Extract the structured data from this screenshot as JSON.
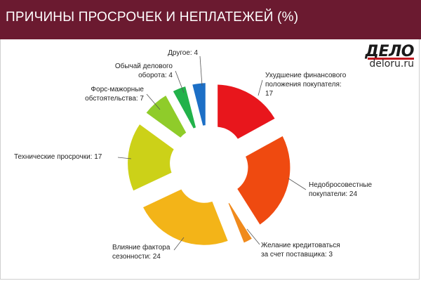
{
  "header": {
    "title": "ПРИЧИНЫ ПРОСРОЧЕК И НЕПЛАТЕЖЕЙ (%)"
  },
  "logo": {
    "word": "ДЕЛО",
    "site": "deloru.ru"
  },
  "chart_data": {
    "type": "pie",
    "title": "ПРИЧИНЫ ПРОСРОЧЕК И НЕПЛАТЕЖЕЙ (%)",
    "categories": [
      "Ухудшение финансового положения покупателя",
      "Недобросовестные покупатели",
      "Желание кредитоваться за счет поставщика",
      "Влияние фактора сезонности",
      "Технические просрочки",
      "Форс-мажорные обстоятельства",
      "Обычай делового оборота",
      "Другое"
    ],
    "values": [
      17,
      24,
      3,
      24,
      17,
      7,
      4,
      4
    ],
    "colors": [
      "#e8161c",
      "#ef4a10",
      "#f08a1c",
      "#f3b418",
      "#ccd118",
      "#8fcc2a",
      "#22b24a",
      "#1c6fc6"
    ],
    "labels": [
      {
        "lines": [
          "Ухудшение финансового",
          "положения покупателя:",
          "17"
        ]
      },
      {
        "lines": [
          "Недобросовестные",
          "покупатели: 24"
        ]
      },
      {
        "lines": [
          "Желание кредитоваться",
          "за счет поставщика: 3"
        ]
      },
      {
        "lines": [
          "Влияние фактора",
          "сезонности: 24"
        ]
      },
      {
        "lines": [
          "Технические просрочки: 17"
        ]
      },
      {
        "lines": [
          "Форс-мажорные",
          "обстоятельства: 7"
        ]
      },
      {
        "lines": [
          "Обычай делового",
          "оборота: 4"
        ]
      },
      {
        "lines": [
          "Другое: 4"
        ]
      }
    ],
    "legend": "none"
  }
}
